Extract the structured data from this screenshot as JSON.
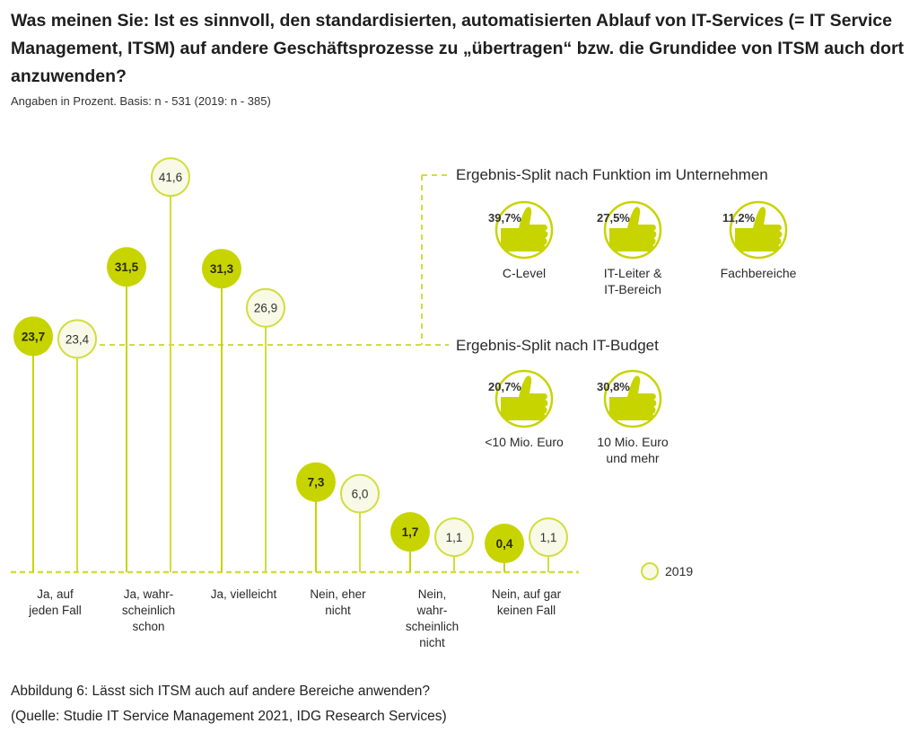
{
  "title": "Was meinen Sie: Ist es sinnvoll, den standardisierten, automatisierten Ablauf von IT-Services (= IT Service Management, ITSM) auf andere Geschäftsprozesse zu „übertragen“ bzw. die Grundidee von ITSM auch dort anzuwenden?",
  "subtitle": "Angaben in Prozent. Basis: n - 531 (2019: n - 385)",
  "caption": {
    "line1": "Abbildung 6: Lässt sich ITSM auch auf andere Bereiche anwenden?",
    "line2": "(Quelle: Studie IT Service Management 2021, IDG Research Services)"
  },
  "colors": {
    "current": "#c8d400",
    "previous_fill": "#f8f9e6",
    "previous_stroke": "#d2dd3c",
    "text": "#2a2a2a"
  },
  "chart_data": {
    "type": "lollipop",
    "categories": [
      [
        "Ja, auf",
        "jeden Fall"
      ],
      [
        "Ja, wahr-",
        "scheinlich",
        "schon"
      ],
      [
        "Ja, vielleicht"
      ],
      [
        "Nein, eher",
        "nicht"
      ],
      [
        "Nein,",
        "wahr-",
        "scheinlich",
        "nicht"
      ],
      [
        "Nein, auf gar",
        "keinen Fall"
      ]
    ],
    "series": [
      {
        "values": [
          23.7,
          31.5,
          31.3,
          7.3,
          1.7,
          0.4
        ],
        "labels": [
          "23,7",
          "31,5",
          "31,3",
          "7,3",
          "1,7",
          "0,4"
        ],
        "style": "filled"
      },
      {
        "name": "2019",
        "values": [
          23.4,
          41.6,
          26.9,
          6.0,
          1.1,
          1.1
        ],
        "labels": [
          "23,4",
          "41,6",
          "26,9",
          "6,0",
          "1,1",
          "1,1"
        ],
        "style": "outline"
      }
    ],
    "legend": {
      "label": "2019",
      "position": "right"
    },
    "ylim": [
      0,
      45
    ]
  },
  "splits": [
    {
      "heading": "Ergebnis-Split nach Funktion im Unternehmen",
      "icon": "thumbs-up-icon",
      "items": [
        {
          "value": "39,7%",
          "label": [
            "C-Level"
          ]
        },
        {
          "value": "27,5%",
          "label": [
            "IT-Leiter &",
            "IT-Bereich"
          ]
        },
        {
          "value": "11,2%",
          "label": [
            "Fachbereiche"
          ]
        }
      ]
    },
    {
      "heading": "Ergebnis-Split nach IT-Budget",
      "icon": "thumbs-up-icon",
      "items": [
        {
          "value": "20,7%",
          "label": [
            "<10 Mio. Euro"
          ]
        },
        {
          "value": "30,8%",
          "label": [
            "10 Mio. Euro",
            "und mehr"
          ]
        }
      ]
    }
  ]
}
